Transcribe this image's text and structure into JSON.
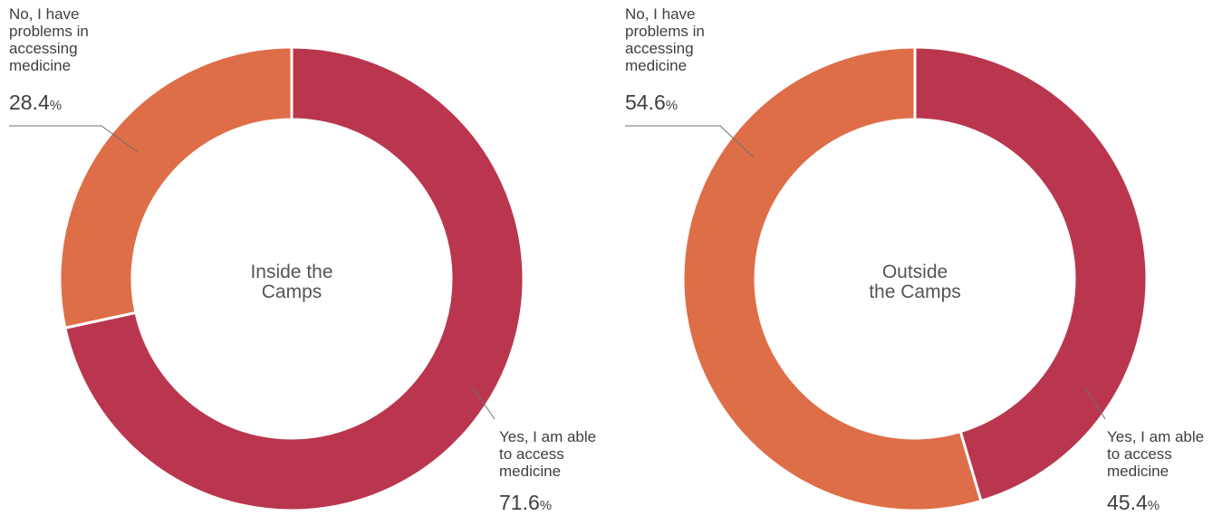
{
  "chart_data": [
    {
      "type": "pie",
      "center_label": [
        "Inside the",
        "Camps"
      ],
      "slices": [
        {
          "label": [
            "Yes, I am able",
            "to access",
            "medicine"
          ],
          "value": 71.6,
          "display": "71.6",
          "unit": "%",
          "color": "#b9364e"
        },
        {
          "label": [
            "No, I have",
            "problems in",
            "accessing",
            "medicine"
          ],
          "value": 28.4,
          "display": "28.4",
          "unit": "%",
          "color": "#de6e48"
        }
      ]
    },
    {
      "type": "pie",
      "center_label": [
        "Outside",
        "the Camps"
      ],
      "slices": [
        {
          "label": [
            "Yes, I am able",
            "to access",
            "medicine"
          ],
          "value": 45.4,
          "display": "45.4",
          "unit": "%",
          "color": "#b9364e"
        },
        {
          "label": [
            "No, I have",
            "problems in",
            "accessing",
            "medicine"
          ],
          "value": 54.6,
          "display": "54.6",
          "unit": "%",
          "color": "#de6e48"
        }
      ]
    }
  ]
}
